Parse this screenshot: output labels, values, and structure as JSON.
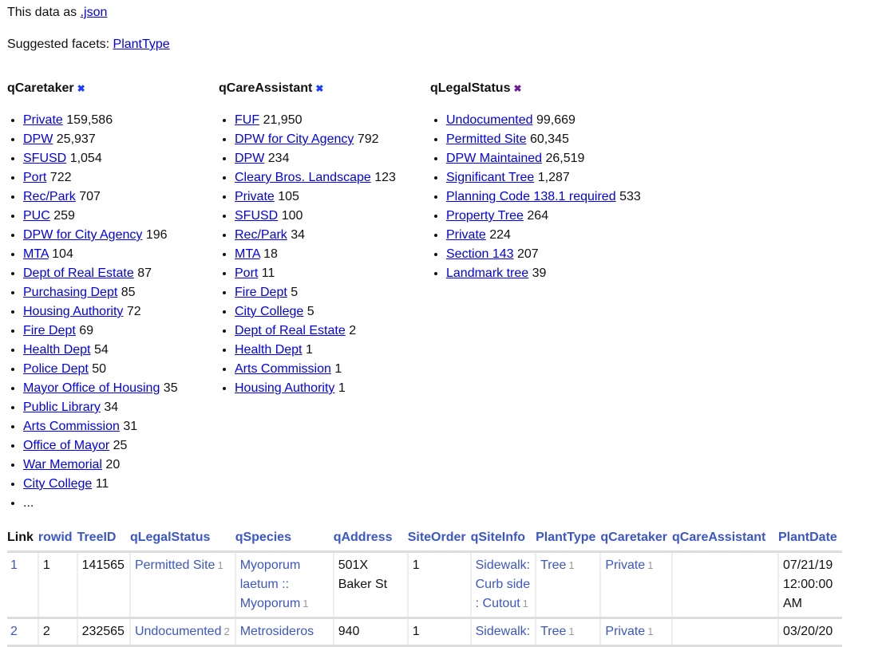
{
  "header": {
    "json_prefix": "This data as ",
    "json_link": ".json",
    "suggested_prefix": "Suggested facets: ",
    "suggested": "PlantType"
  },
  "facets": [
    {
      "title": "qCaretaker",
      "remove_icon": "x-icon",
      "items": [
        [
          "Private",
          "159,586"
        ],
        [
          "DPW",
          "25,937"
        ],
        [
          "SFUSD",
          "1,054"
        ],
        [
          "Port",
          "722"
        ],
        [
          "Rec/Park",
          "707"
        ],
        [
          "PUC",
          "259"
        ],
        [
          "DPW for City Agency",
          "196"
        ],
        [
          "MTA",
          "104"
        ],
        [
          "Dept of Real Estate",
          "87"
        ],
        [
          "Purchasing Dept",
          "85"
        ],
        [
          "Housing Authority",
          "72"
        ],
        [
          "Fire Dept",
          "69"
        ],
        [
          "Health Dept",
          "54"
        ],
        [
          "Police Dept",
          "50"
        ],
        [
          "Mayor Office of Housing",
          "35"
        ],
        [
          "Public Library",
          "34"
        ],
        [
          "Arts Commission",
          "31"
        ],
        [
          "Office of Mayor",
          "25"
        ],
        [
          "War Memorial",
          "20"
        ],
        [
          "City College",
          "11"
        ]
      ],
      "more": "..."
    },
    {
      "title": "qCareAssistant",
      "remove_icon": "x-icon",
      "items": [
        [
          "FUF",
          "21,950"
        ],
        [
          "DPW for City Agency",
          "792"
        ],
        [
          "DPW",
          "234"
        ],
        [
          "Cleary Bros. Landscape",
          "123"
        ],
        [
          "Private",
          "105"
        ],
        [
          "SFUSD",
          "100"
        ],
        [
          "Rec/Park",
          "34"
        ],
        [
          "MTA",
          "18"
        ],
        [
          "Port",
          "11"
        ],
        [
          "Fire Dept",
          "5"
        ],
        [
          "City College",
          "5"
        ],
        [
          "Dept of Real Estate",
          "2"
        ],
        [
          "Health Dept",
          "1"
        ],
        [
          "Arts Commission",
          "1"
        ],
        [
          "Housing Authority",
          "1"
        ]
      ]
    },
    {
      "title": "qLegalStatus",
      "remove_icon": "x-icon",
      "items": [
        [
          "Undocumented",
          "99,669"
        ],
        [
          "Permitted Site",
          "60,345"
        ],
        [
          "DPW Maintained",
          "26,519"
        ],
        [
          "Significant Tree",
          "1,287"
        ],
        [
          "Planning Code 138.1 required",
          "533"
        ],
        [
          "Property Tree",
          "264"
        ],
        [
          "Private",
          "224"
        ],
        [
          "Section 143",
          "207"
        ],
        [
          "Landmark tree",
          "39"
        ]
      ]
    }
  ],
  "table": {
    "columns": [
      "Link",
      "rowid",
      "TreeID",
      "qLegalStatus",
      "qSpecies",
      "qAddress",
      "SiteOrder",
      "qSiteInfo",
      "PlantType",
      "qCaretaker",
      "qCareAssistant",
      "PlantDate"
    ],
    "rows": [
      {
        "link": "1",
        "rowid": "1",
        "treeid": "141565",
        "legal": "Permitted Site",
        "legal_n": "1",
        "species": "Myoporum laetum :: Myoporum",
        "species_n": "1",
        "address": "501X Baker St",
        "siteorder": "1",
        "siteinfo": "Sidewalk: Curb side : Cutout",
        "siteinfo_n": "1",
        "planttype": "Tree",
        "planttype_n": "1",
        "caretaker": "Private",
        "caretaker_n": "1",
        "careassistant": "",
        "plantdate": "07/21/19 12:00:00 AM"
      },
      {
        "link": "2",
        "rowid": "2",
        "treeid": "232565",
        "legal": "Undocumented",
        "legal_n": "2",
        "species": "Metrosideros",
        "species_n": "",
        "address": "940",
        "siteorder": "1",
        "siteinfo": "Sidewalk:",
        "siteinfo_n": "",
        "planttype": "Tree",
        "planttype_n": "1",
        "caretaker": "Private",
        "caretaker_n": "1",
        "careassistant": "",
        "plantdate": "03/20/20"
      }
    ]
  }
}
